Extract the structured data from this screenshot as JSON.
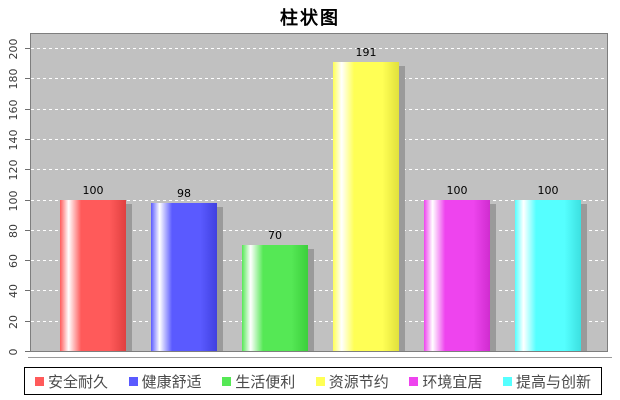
{
  "chart_data": {
    "type": "bar",
    "title": "柱状图",
    "categories": [
      "安全耐久",
      "健康舒适",
      "生活便利",
      "资源节约",
      "环境宜居",
      "提高与创新"
    ],
    "values": [
      100,
      98,
      70,
      191,
      100,
      100
    ],
    "yticks": [
      0,
      20,
      40,
      60,
      80,
      100,
      120,
      140,
      160,
      180,
      200
    ],
    "ylim": [
      0,
      210
    ],
    "xlabel": "",
    "ylabel": "",
    "grid": "horizontal-dashed-white",
    "legend_position": "bottom",
    "colors": {
      "plot_background": "#C1C1C1",
      "plot_border": "#7E7E7E",
      "gridline": "#FFFFFF",
      "bar_shadow": "#9A9A9A",
      "axis_line": "#9A9A9A",
      "tick_label": "#3A3A3A",
      "legend_text": "#4A4A4A",
      "series": [
        {
          "name": "安全耐久",
          "main": "#FF5A5A",
          "dark": "#E04040"
        },
        {
          "name": "健康舒适",
          "main": "#5A5AFF",
          "dark": "#4040E0"
        },
        {
          "name": "生活便利",
          "main": "#55E855",
          "dark": "#3CCF3C"
        },
        {
          "name": "资源节约",
          "main": "#FFFF55",
          "dark": "#E0E03C"
        },
        {
          "name": "环境宜居",
          "main": "#EE44EE",
          "dark": "#CF2CCF"
        },
        {
          "name": "提高与创新",
          "main": "#55FFFF",
          "dark": "#3CE0E0"
        }
      ]
    }
  }
}
